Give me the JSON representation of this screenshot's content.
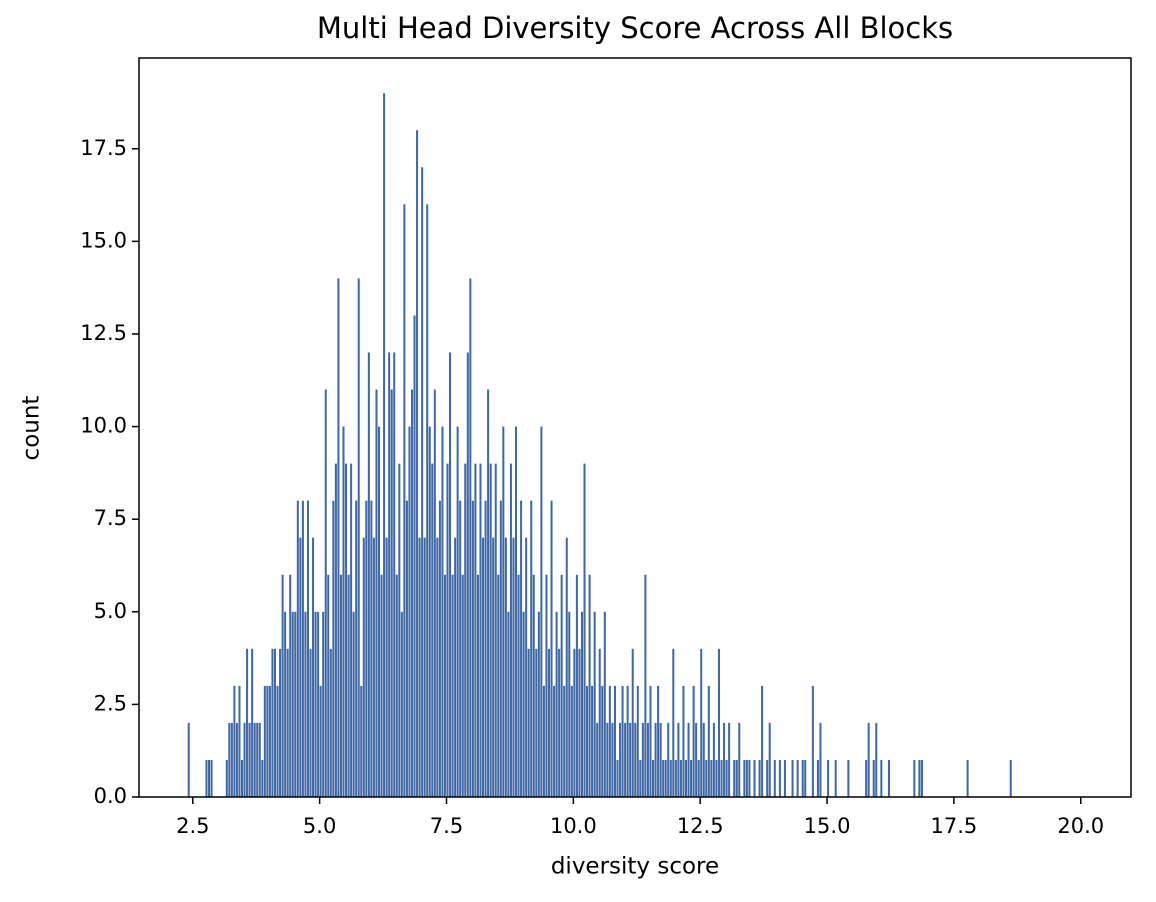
{
  "chart_data": {
    "type": "histogram",
    "title": "Multi Head Diversity Score Across All Blocks",
    "x_label": "diversity score",
    "y_label": "count",
    "color": "#4068a5",
    "bins": [
      2.4,
      2.45,
      2.5,
      2.55,
      2.6,
      2.65,
      2.7,
      2.75,
      2.8,
      2.85,
      2.9,
      2.95,
      3,
      3.05,
      3.1,
      3.15,
      3.2,
      3.25,
      3.3,
      3.35,
      3.4,
      3.45,
      3.5,
      3.55,
      3.6,
      3.65,
      3.7,
      3.75,
      3.8,
      3.85,
      3.9,
      3.95,
      4,
      4.05,
      4.1,
      4.15,
      4.2,
      4.25,
      4.3,
      4.35,
      4.4,
      4.45,
      4.5,
      4.55,
      4.6,
      4.65,
      4.7,
      4.75,
      4.8,
      4.85,
      4.9,
      4.95,
      5,
      5.05,
      5.1,
      5.15,
      5.2,
      5.25,
      5.3,
      5.35,
      5.4,
      5.45,
      5.5,
      5.55,
      5.6,
      5.65,
      5.7,
      5.75,
      5.8,
      5.85,
      5.9,
      5.95,
      6,
      6.05,
      6.1,
      6.15,
      6.2,
      6.25,
      6.3,
      6.35,
      6.4,
      6.45,
      6.5,
      6.55,
      6.6,
      6.65,
      6.7,
      6.75,
      6.8,
      6.85,
      6.9,
      6.95,
      7,
      7.05,
      7.1,
      7.15,
      7.2,
      7.25,
      7.3,
      7.35,
      7.4,
      7.45,
      7.5,
      7.55,
      7.6,
      7.65,
      7.7,
      7.75,
      7.8,
      7.85,
      7.9,
      7.95,
      8,
      8.05,
      8.1,
      8.15,
      8.2,
      8.25,
      8.3,
      8.35,
      8.4,
      8.45,
      8.5,
      8.55,
      8.6,
      8.65,
      8.7,
      8.75,
      8.8,
      8.85,
      8.9,
      8.95,
      9,
      9.05,
      9.1,
      9.15,
      9.2,
      9.25,
      9.3,
      9.35,
      9.4,
      9.45,
      9.5,
      9.55,
      9.6,
      9.65,
      9.7,
      9.75,
      9.8,
      9.85,
      9.9,
      9.95,
      10,
      10.05,
      10.1,
      10.15,
      10.2,
      10.25,
      10.3,
      10.35,
      10.4,
      10.45,
      10.5,
      10.55,
      10.6,
      10.65,
      10.7,
      10.75,
      10.8,
      10.85,
      10.9,
      10.95,
      11,
      11.05,
      11.1,
      11.15,
      11.2,
      11.25,
      11.3,
      11.35,
      11.4,
      11.45,
      11.5,
      11.55,
      11.6,
      11.65,
      11.7,
      11.75,
      11.8,
      11.85,
      11.9,
      11.95,
      12,
      12.05,
      12.1,
      12.15,
      12.2,
      12.25,
      12.3,
      12.35,
      12.4,
      12.45,
      12.5,
      12.55,
      12.6,
      12.65,
      12.7,
      12.75,
      12.8,
      12.85,
      12.9,
      12.95,
      13,
      13.05,
      13.1,
      13.15,
      13.2,
      13.25,
      13.3,
      13.35,
      13.4,
      13.45,
      13.5,
      13.55,
      13.6,
      13.65,
      13.7,
      13.75,
      13.8,
      13.85,
      13.9,
      13.95,
      14,
      14.05,
      14.1,
      14.15,
      14.2,
      14.25,
      14.3,
      14.35,
      14.4,
      14.45,
      14.5,
      14.55,
      14.6,
      14.65,
      14.7,
      14.75,
      14.8,
      14.85,
      14.9,
      14.95,
      15,
      15.05,
      15.1,
      15.15,
      15.2,
      15.25,
      15.3,
      15.35,
      15.4,
      15.45,
      15.5,
      15.55,
      15.6,
      15.65,
      15.7,
      15.75,
      15.8,
      15.85,
      15.9,
      15.95,
      16,
      16.05,
      16.1,
      16.15,
      16.2,
      16.25,
      16.3,
      16.35,
      16.4,
      16.45,
      16.5,
      16.55,
      16.6,
      16.65,
      16.7,
      16.75,
      16.8,
      16.85,
      16.9,
      16.95,
      17,
      17.05,
      17.1,
      17.15,
      17.2,
      17.25,
      17.3,
      17.35,
      17.4,
      17.45,
      17.5,
      17.55,
      17.6,
      17.65,
      17.7,
      17.75,
      17.8,
      17.85,
      17.9,
      17.95,
      18,
      18.05,
      18.1,
      18.15,
      18.2,
      18.25,
      18.3,
      18.35,
      18.4,
      18.45,
      18.5,
      18.55,
      18.6,
      18.65,
      18.7
    ],
    "values": [
      2,
      0,
      0,
      0,
      0,
      0,
      0,
      1,
      1,
      1,
      0,
      0,
      0,
      0,
      0,
      1,
      2,
      2,
      3,
      2,
      3,
      1,
      2,
      4,
      2,
      4,
      2,
      2,
      2,
      1,
      3,
      3,
      3,
      4,
      4,
      3,
      4,
      6,
      5,
      4,
      6,
      5,
      5,
      8,
      7,
      8,
      5,
      8,
      4,
      7,
      5,
      5,
      3,
      5,
      11,
      6,
      4,
      8,
      9,
      14,
      6,
      10,
      9,
      6,
      9,
      5,
      8,
      14,
      3,
      7,
      8,
      12,
      8,
      7,
      11,
      10,
      6,
      19,
      7,
      12,
      11,
      12,
      6,
      9,
      5,
      16,
      8,
      10,
      11,
      13,
      18,
      7,
      17,
      7,
      16,
      10,
      9,
      11,
      7,
      8,
      10,
      6,
      9,
      12,
      6,
      7,
      10,
      8,
      6,
      9,
      12,
      14,
      8,
      9,
      6,
      9,
      7,
      8,
      11,
      9,
      7,
      9,
      6,
      8,
      10,
      7,
      5,
      9,
      7,
      10,
      6,
      8,
      5,
      7,
      4,
      8,
      6,
      4,
      5,
      10,
      3,
      6,
      4,
      8,
      3,
      5,
      4,
      6,
      3,
      7,
      5,
      3,
      4,
      6,
      4,
      5,
      9,
      3,
      6,
      3,
      5,
      2,
      4,
      3,
      5,
      2,
      3,
      2,
      3,
      1,
      2,
      3,
      2,
      3,
      2,
      4,
      2,
      3,
      1,
      2,
      6,
      2,
      3,
      1,
      2,
      3,
      2,
      1,
      1,
      2,
      1,
      4,
      1,
      2,
      1,
      3,
      1,
      2,
      1,
      3,
      2,
      1,
      4,
      2,
      1,
      3,
      1,
      2,
      1,
      4,
      1,
      2,
      1,
      2,
      0,
      1,
      1,
      2,
      0,
      1,
      1,
      1,
      0,
      1,
      0,
      1,
      3,
      0,
      1,
      2,
      0,
      1,
      0,
      1,
      0,
      1,
      0,
      0,
      1,
      0,
      1,
      0,
      1,
      1,
      0,
      0,
      3,
      0,
      1,
      2,
      0,
      0,
      1,
      0,
      0,
      1,
      0,
      0,
      0,
      0,
      1,
      0,
      0,
      0,
      0,
      0,
      0,
      1,
      2,
      0,
      1,
      2,
      0,
      1,
      0,
      0,
      1,
      0,
      0,
      0,
      0,
      0,
      0,
      0,
      0,
      0,
      1,
      0,
      1,
      1,
      0,
      0,
      0,
      0,
      0,
      0,
      0,
      0,
      0,
      0,
      0,
      0,
      0,
      0,
      0,
      0,
      0,
      1,
      0,
      0,
      0,
      0,
      0,
      0,
      0,
      0,
      0,
      0,
      0,
      0,
      0,
      0,
      0,
      0,
      1,
      0
    ],
    "xlim": [
      1.44,
      20.99
    ],
    "ylim": [
      0,
      19.95
    ],
    "xticks": [
      2.5,
      {
        "value": 5,
        "label": "5.0"
      },
      7.5,
      {
        "value": 10,
        "label": "10.0"
      },
      12.5,
      {
        "value": 15,
        "label": "15.0"
      },
      17.5,
      {
        "value": 20,
        "label": "20.0"
      }
    ],
    "yticks": [
      {
        "value": 0,
        "label": "0.0"
      },
      2.5,
      {
        "value": 5,
        "label": "5.0"
      },
      7.5,
      {
        "value": 10,
        "label": "10.0"
      },
      12.5,
      {
        "value": 15,
        "label": "15.0"
      },
      17.5
    ]
  }
}
